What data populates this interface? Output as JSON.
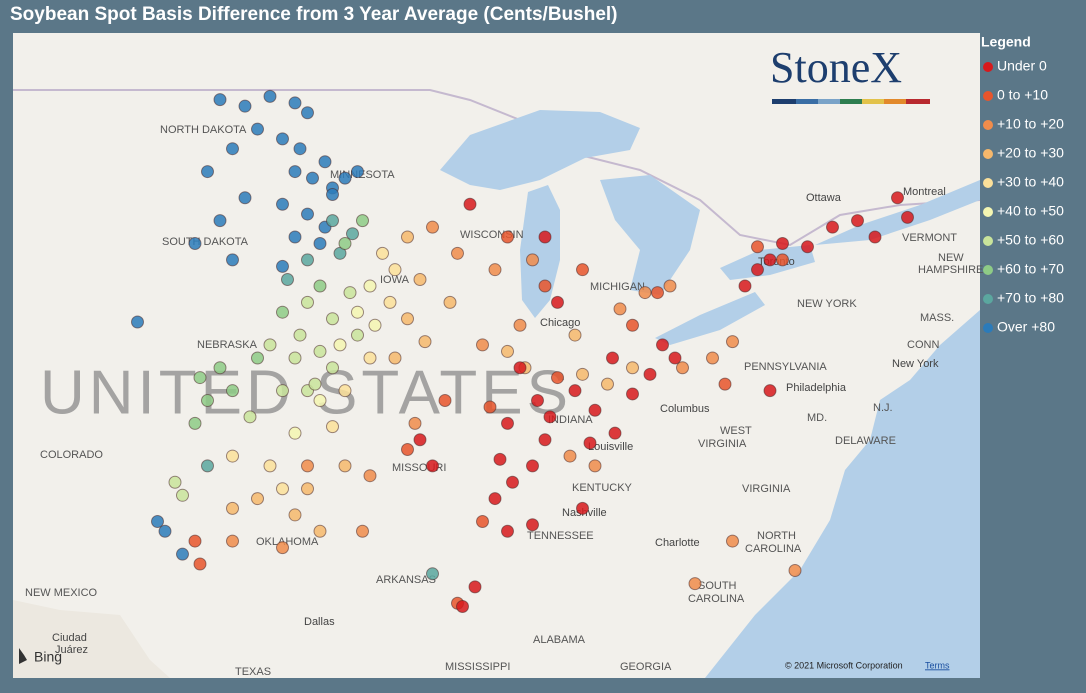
{
  "title": "Soybean Spot Basis Difference from 3 Year Average (Cents/Bushel)",
  "logo": "StoneX",
  "legend": {
    "title": "Legend",
    "items": [
      {
        "label": "Under 0",
        "color": "#d7191c",
        "points": [
          [
            -91,
            45.5
          ],
          [
            -88,
            44.5
          ],
          [
            -87.5,
            42.5
          ],
          [
            -89,
            40.5
          ],
          [
            -88.3,
            39.5
          ],
          [
            -89.5,
            38.8
          ],
          [
            -88,
            38.3
          ],
          [
            -89.8,
            37.7
          ],
          [
            -89.3,
            37
          ],
          [
            -88.5,
            37.5
          ],
          [
            -87.8,
            39
          ],
          [
            -86.8,
            39.8
          ],
          [
            -86,
            39.2
          ],
          [
            -85.3,
            40.8
          ],
          [
            -84.5,
            39.7
          ],
          [
            -83.8,
            40.3
          ],
          [
            -83.3,
            41.2
          ],
          [
            -82.8,
            40.8
          ],
          [
            -85.2,
            38.5
          ],
          [
            -86.2,
            38.2
          ],
          [
            -79.5,
            43.5
          ],
          [
            -79,
            43.8
          ],
          [
            -78.5,
            44.3
          ],
          [
            -77.5,
            44.2
          ],
          [
            -76.5,
            44.8
          ],
          [
            -75.5,
            45
          ],
          [
            -80,
            43
          ],
          [
            -74.8,
            44.5
          ],
          [
            -73.5,
            45.1
          ],
          [
            -93,
            38.3
          ],
          [
            -92.5,
            37.5
          ],
          [
            -90,
            36.5
          ],
          [
            -89.5,
            35.5
          ],
          [
            -88.5,
            35.7
          ],
          [
            -86.5,
            36.2
          ],
          [
            -90.8,
            33.8
          ],
          [
            -91.3,
            33.2
          ],
          [
            -79,
            39.8
          ],
          [
            -73.9,
            45.7
          ]
        ]
      },
      {
        "label": "0 to +10",
        "color": "#e8552c",
        "points": [
          [
            -89.5,
            44.5
          ],
          [
            -88,
            43
          ],
          [
            -86.5,
            43.5
          ],
          [
            -83.5,
            42.8
          ],
          [
            -87.5,
            40.2
          ],
          [
            -90.2,
            39.3
          ],
          [
            -93.5,
            38
          ],
          [
            -92,
            39.5
          ],
          [
            -84.5,
            41.8
          ],
          [
            -79.5,
            44.2
          ],
          [
            -78.5,
            43.8
          ],
          [
            -80.8,
            40
          ],
          [
            -90.5,
            35.8
          ],
          [
            -91.5,
            33.3
          ],
          [
            -102,
            35.2
          ],
          [
            -101.8,
            34.5
          ]
        ]
      },
      {
        "label": "+10 to +20",
        "color": "#f08c4b",
        "points": [
          [
            -92.5,
            44.8
          ],
          [
            -91.5,
            44
          ],
          [
            -90,
            43.5
          ],
          [
            -88.5,
            43.8
          ],
          [
            -90.5,
            41.2
          ],
          [
            -89,
            41.8
          ],
          [
            -85,
            42.3
          ],
          [
            -84,
            42.8
          ],
          [
            -83,
            43
          ],
          [
            -80.5,
            41.3
          ],
          [
            -86,
            37.5
          ],
          [
            -87,
            37.8
          ],
          [
            -97.5,
            37.5
          ],
          [
            -95,
            37.2
          ],
          [
            -98.5,
            35
          ],
          [
            -100.5,
            35.2
          ],
          [
            -95.3,
            35.5
          ],
          [
            -93.2,
            38.8
          ],
          [
            -82.5,
            40.5
          ],
          [
            -81.3,
            40.8
          ],
          [
            -82,
            33.9
          ],
          [
            -80.5,
            35.2
          ],
          [
            -78,
            34.3
          ]
        ]
      },
      {
        "label": "+20 to +30",
        "color": "#f6b86c",
        "points": [
          [
            -93.5,
            44.5
          ],
          [
            -93,
            43.2
          ],
          [
            -93.5,
            42
          ],
          [
            -92.8,
            41.3
          ],
          [
            -94,
            40.8
          ],
          [
            -91.8,
            42.5
          ],
          [
            -89.5,
            41
          ],
          [
            -88.8,
            40.5
          ],
          [
            -86.5,
            40.3
          ],
          [
            -85.5,
            40
          ],
          [
            -96,
            37.5
          ],
          [
            -97.5,
            36.8
          ],
          [
            -98,
            36
          ],
          [
            -97,
            35.5
          ],
          [
            -99.5,
            36.5
          ],
          [
            -100.5,
            36.2
          ],
          [
            -84.5,
            40.5
          ],
          [
            -86.8,
            41.5
          ]
        ]
      },
      {
        "label": "+30 to +40",
        "color": "#fbe09a",
        "points": [
          [
            -94.5,
            44
          ],
          [
            -94,
            43.5
          ],
          [
            -94.2,
            42.5
          ],
          [
            -95,
            40.8
          ],
          [
            -96,
            39.8
          ],
          [
            -96.5,
            38.7
          ],
          [
            -99,
            37.5
          ],
          [
            -100.5,
            37.8
          ],
          [
            -98.5,
            36.8
          ]
        ]
      },
      {
        "label": "+40 to +50",
        "color": "#f4f6b2",
        "points": [
          [
            -95,
            43
          ],
          [
            -95.5,
            42.2
          ],
          [
            -96.2,
            41.2
          ],
          [
            -94.8,
            41.8
          ],
          [
            -97,
            39.5
          ],
          [
            -98,
            38.5
          ]
        ]
      },
      {
        "label": "+50 to +60",
        "color": "#c9e49b",
        "points": [
          [
            -97.5,
            42.5
          ],
          [
            -96.5,
            42
          ],
          [
            -95.8,
            42.8
          ],
          [
            -97.8,
            41.5
          ],
          [
            -99,
            41.2
          ],
          [
            -98,
            40.8
          ],
          [
            -96.5,
            40.5
          ],
          [
            -95.5,
            41.5
          ],
          [
            -97,
            41
          ],
          [
            -98.5,
            39.8
          ],
          [
            -97.5,
            39.8
          ],
          [
            -99.8,
            39
          ],
          [
            -102.8,
            37
          ],
          [
            -102.5,
            36.6
          ],
          [
            -97.2,
            40
          ]
        ]
      },
      {
        "label": "+60 to +70",
        "color": "#8ecb86",
        "points": [
          [
            -96,
            44.3
          ],
          [
            -95.3,
            45
          ],
          [
            -97,
            43
          ],
          [
            -98.5,
            42.2
          ],
          [
            -101,
            40.5
          ],
          [
            -101.8,
            40.2
          ],
          [
            -100.5,
            39.8
          ],
          [
            -99.5,
            40.8
          ],
          [
            -101.5,
            39.5
          ],
          [
            -102,
            38.8
          ]
        ]
      },
      {
        "label": "+70 to +80",
        "color": "#5ba79f",
        "points": [
          [
            -96.5,
            45
          ],
          [
            -95.7,
            44.6
          ],
          [
            -97.5,
            43.8
          ],
          [
            -96.2,
            44
          ],
          [
            -98.3,
            43.2
          ],
          [
            -92.5,
            34.2
          ],
          [
            -101.5,
            37.5
          ]
        ]
      },
      {
        "label": "Over +80",
        "color": "#2b7bba",
        "points": [
          [
            -101,
            48.7
          ],
          [
            -100,
            48.5
          ],
          [
            -99,
            48.8
          ],
          [
            -98,
            48.6
          ],
          [
            -97.5,
            48.3
          ],
          [
            -99.5,
            47.8
          ],
          [
            -98.5,
            47.5
          ],
          [
            -97.8,
            47.2
          ],
          [
            -96.8,
            46.8
          ],
          [
            -97.3,
            46.3
          ],
          [
            -96.5,
            46
          ],
          [
            -98,
            46.5
          ],
          [
            -100.5,
            47.2
          ],
          [
            -101.5,
            46.5
          ],
          [
            -100,
            45.7
          ],
          [
            -98.5,
            45.5
          ],
          [
            -97.5,
            45.2
          ],
          [
            -96.8,
            44.8
          ],
          [
            -97,
            44.3
          ],
          [
            -98,
            44.5
          ],
          [
            -101,
            45
          ],
          [
            -102,
            44.3
          ],
          [
            -100.5,
            43.8
          ],
          [
            -98.5,
            43.6
          ],
          [
            -103.2,
            35.5
          ],
          [
            -103.5,
            35.8
          ],
          [
            -102.5,
            34.8
          ],
          [
            -96.5,
            45.8
          ],
          [
            -96,
            46.3
          ],
          [
            -95.5,
            46.5
          ],
          [
            -104.3,
            41.9
          ]
        ]
      }
    ]
  },
  "places": [
    "NORTH DAKOTA",
    "MINNESOTA",
    "SOUTH DAKOTA",
    "NEBRASKA",
    "COLORADO",
    "MISSOURI",
    "OKLAHOMA",
    "ARKANSAS",
    "NEW MEXICO",
    "TEXAS",
    "Dallas",
    "Ciudad",
    "Juárez",
    "MISSISSIPPI",
    "ALABAMA",
    "GEORGIA",
    "TENNESSEE",
    "KENTUCKY",
    "Nashville",
    "Louisville",
    "Chicago",
    "MICHIGAN",
    "WISCONSIN",
    "Columbus",
    "WEST",
    "VIRGINIA",
    "VIRGINIA",
    "NORTH",
    "CAROLINA",
    "Charlotte",
    "SOUTH",
    "CAROLINA",
    "PENNSYLVANIA",
    "Philadelphia",
    "NEW YORK",
    "New York",
    "Ottawa",
    "Montreal",
    "VERMONT",
    "NEW",
    "HAMPSHIRE",
    "MASS.",
    "CONN",
    "N.J.",
    "MD.",
    "DELAWARE",
    "Toronto",
    "INDIANA",
    "IOWA"
  ],
  "country": "UNITED STATES",
  "attribution": {
    "bing": "Bing",
    "copyright": "© 2021 Microsoft Corporation",
    "terms": "Terms"
  }
}
